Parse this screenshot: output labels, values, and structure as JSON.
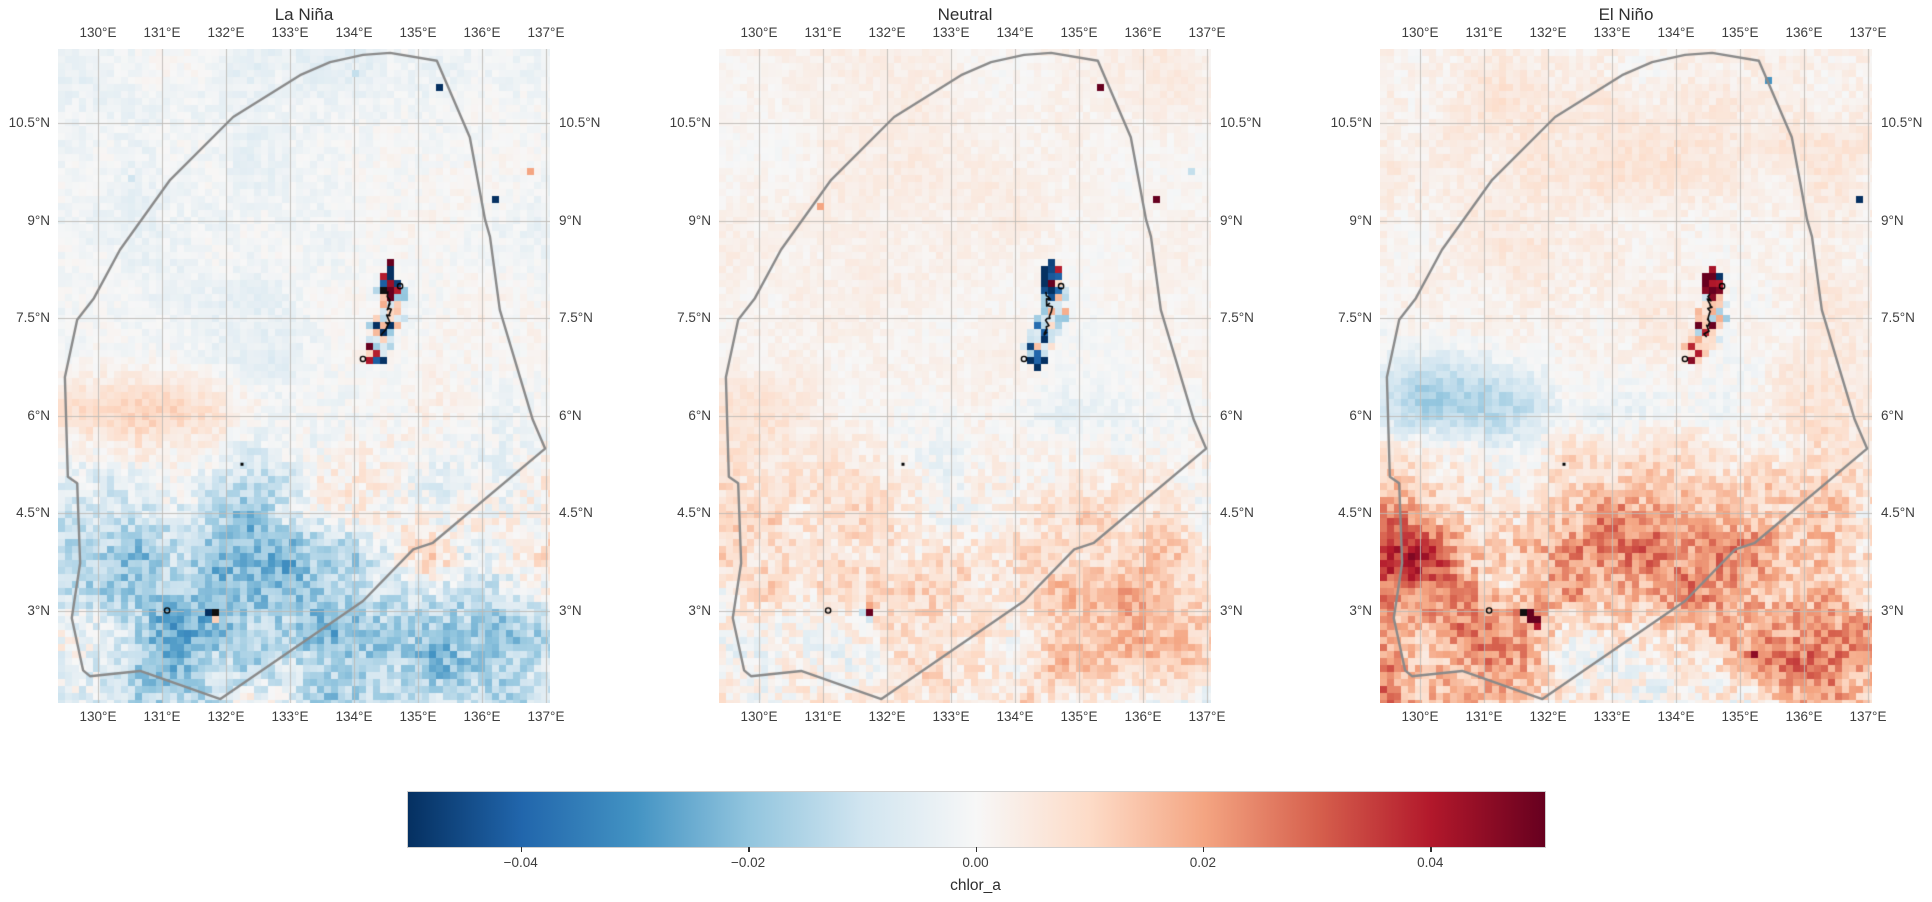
{
  "colorbar": {
    "label": "chlor_a",
    "tick_labels": [
      "−0.04",
      "−0.02",
      "0.00",
      "0.02",
      "0.04"
    ],
    "tick_values": [
      -0.04,
      -0.02,
      0.0,
      0.02,
      0.04
    ],
    "vmin": -0.05,
    "vmax": 0.05,
    "stops": [
      "#053061",
      "#2166ac",
      "#4393c3",
      "#92c5de",
      "#d1e5f0",
      "#f7f7f7",
      "#fddbc7",
      "#f4a582",
      "#d6604d",
      "#b2182b",
      "#67001f"
    ]
  },
  "chart_data": {
    "type": "heatmap",
    "variable": "chlor_a",
    "colormap": "RdBu_r",
    "vmin": -0.05,
    "vmax": 0.05,
    "colorbar_tick_values": [
      -0.04,
      -0.02,
      0.0,
      0.02,
      0.04
    ],
    "lon_range": [
      129.375,
      137.0625
    ],
    "lat_range": [
      1.58,
      11.64
    ],
    "lon_tick_values": [
      130,
      131,
      132,
      133,
      134,
      135,
      136,
      137
    ],
    "lat_tick_values": [
      10.5,
      9,
      7.5,
      6,
      4.5,
      3
    ],
    "lon_tick_labels": [
      "130°E",
      "131°E",
      "132°E",
      "133°E",
      "134°E",
      "135°E",
      "136°E",
      "137°E"
    ],
    "lat_tick_labels": [
      "10.5°N",
      "9°N",
      "7.5°N",
      "6°N",
      "4.5°N",
      "3°N"
    ],
    "grid": true,
    "boundary_polygon_norm": [
      [
        0.553,
        0.02
      ],
      [
        0.62,
        0.009
      ],
      [
        0.675,
        0.006
      ],
      [
        0.77,
        0.018
      ],
      [
        0.837,
        0.135
      ],
      [
        0.868,
        0.261
      ],
      [
        0.878,
        0.287
      ],
      [
        0.898,
        0.399
      ],
      [
        0.965,
        0.567
      ],
      [
        0.99,
        0.611
      ],
      [
        0.762,
        0.755
      ],
      [
        0.722,
        0.765
      ],
      [
        0.62,
        0.844
      ],
      [
        0.33,
        0.994
      ],
      [
        0.167,
        0.951
      ],
      [
        0.065,
        0.959
      ],
      [
        0.051,
        0.95
      ],
      [
        0.028,
        0.87
      ],
      [
        0.045,
        0.786
      ],
      [
        0.039,
        0.664
      ],
      [
        0.02,
        0.654
      ],
      [
        0.014,
        0.502
      ],
      [
        0.039,
        0.414
      ],
      [
        0.073,
        0.381
      ],
      [
        0.126,
        0.307
      ],
      [
        0.228,
        0.2
      ],
      [
        0.356,
        0.104
      ],
      [
        0.492,
        0.04
      ]
    ],
    "island_arc": [
      [
        134.3,
        6.82
      ],
      [
        134.38,
        7.05
      ],
      [
        134.48,
        7.3
      ],
      [
        134.55,
        7.55
      ],
      [
        134.52,
        7.8
      ],
      [
        134.52,
        8.02
      ],
      [
        134.6,
        8.22
      ]
    ],
    "island_ring_dots": [
      [
        134.14,
        6.87
      ],
      [
        134.72,
        7.99
      ]
    ],
    "panels": [
      {
        "title": "La Niña",
        "seed": 11,
        "base": -0.002,
        "noise_scale": 1.0,
        "island_bias_red": 0.45,
        "island_black_prob": 0.16,
        "blobs": [
          {
            "x": 131.5,
            "y": 3.8,
            "sx": 1.7,
            "sy": 1.0,
            "a": -0.02
          },
          {
            "x": 134.8,
            "y": 2.2,
            "sx": 2.6,
            "sy": 1.3,
            "a": -0.013
          },
          {
            "x": 130.0,
            "y": 2.3,
            "sx": 1.4,
            "sy": 1.2,
            "a": -0.01
          },
          {
            "x": 130.4,
            "y": 6.05,
            "sx": 1.6,
            "sy": 0.6,
            "a": 0.011
          },
          {
            "x": 132.2,
            "y": 6.1,
            "sx": 1.0,
            "sy": 0.5,
            "a": 0.005
          },
          {
            "x": 135.3,
            "y": 7.2,
            "sx": 1.4,
            "sy": 0.9,
            "a": 0.004
          },
          {
            "x": 130.5,
            "y": 9.8,
            "sx": 1.5,
            "sy": 1.2,
            "a": -0.002
          }
        ],
        "outliers": [
          {
            "lon": 135.31,
            "lat": 11.05,
            "v": -0.05
          },
          {
            "lon": 136.23,
            "lat": 9.35,
            "v": -0.05
          },
          {
            "lon": 136.73,
            "lat": 9.78,
            "v": 0.02
          },
          {
            "lon": 134.02,
            "lat": 11.24,
            "v": -0.012
          },
          {
            "lon": 130.55,
            "lat": 9.6,
            "v": -0.01
          }
        ],
        "south_cluster": [
          {
            "lon": 131.72,
            "lat": 3.02,
            "v": -0.001
          },
          {
            "lon": 131.8,
            "lat": 3.02,
            "v": "black"
          },
          {
            "lon": 131.72,
            "lat": 2.92,
            "v": -0.05
          },
          {
            "lon": 131.82,
            "lat": 2.9,
            "v": 0.012
          },
          {
            "lon": 131.42,
            "lat": 3.02,
            "v": -0.025
          }
        ],
        "ring_dots": [
          [
            131.08,
            3.0
          ]
        ],
        "point_dots": [
          [
            132.25,
            5.25
          ]
        ]
      },
      {
        "title": "Neutral",
        "seed": 22,
        "base": 0.0025,
        "noise_scale": 0.8,
        "island_bias_red": 0.18,
        "island_black_prob": 0.2,
        "blobs": [
          {
            "x": 131.4,
            "y": 3.7,
            "sx": 1.9,
            "sy": 1.1,
            "a": 0.011
          },
          {
            "x": 134.6,
            "y": 2.6,
            "sx": 2.6,
            "sy": 1.3,
            "a": 0.008
          },
          {
            "x": 130.2,
            "y": 6.1,
            "sx": 1.4,
            "sy": 0.6,
            "a": 0.004
          },
          {
            "x": 134.3,
            "y": 5.9,
            "sx": 1.3,
            "sy": 0.7,
            "a": -0.005
          },
          {
            "x": 136.0,
            "y": 8.0,
            "sx": 1.5,
            "sy": 1.5,
            "a": -0.002
          }
        ],
        "outliers": [
          {
            "lon": 135.33,
            "lat": 11.05,
            "v": 0.05
          },
          {
            "lon": 136.25,
            "lat": 9.35,
            "v": 0.05
          },
          {
            "lon": 136.75,
            "lat": 9.8,
            "v": -0.012
          },
          {
            "lon": 130.95,
            "lat": 9.2,
            "v": 0.02
          }
        ],
        "south_cluster": [
          {
            "lon": 131.7,
            "lat": 3.05,
            "v": 0.02
          },
          {
            "lon": 131.63,
            "lat": 3.0,
            "v": -0.012
          },
          {
            "lon": 131.77,
            "lat": 3.02,
            "v": "black"
          },
          {
            "lon": 131.7,
            "lat": 2.92,
            "v": 0.05
          },
          {
            "lon": 131.78,
            "lat": 2.9,
            "v": -0.05
          },
          {
            "lon": 131.7,
            "lat": 2.82,
            "v": -0.01
          }
        ],
        "ring_dots": [
          [
            131.08,
            3.0
          ]
        ],
        "point_dots": [
          [
            132.25,
            5.25
          ]
        ]
      },
      {
        "title": "El Niño",
        "seed": 33,
        "base": 0.003,
        "noise_scale": 1.1,
        "island_bias_red": 0.85,
        "island_black_prob": 0.13,
        "blobs": [
          {
            "x": 130.2,
            "y": 6.25,
            "sx": 1.7,
            "sy": 0.7,
            "a": -0.017
          },
          {
            "x": 132.8,
            "y": 6.0,
            "sx": 1.4,
            "sy": 0.55,
            "a": -0.007
          },
          {
            "x": 130.0,
            "y": 2.6,
            "sx": 1.9,
            "sy": 1.5,
            "a": 0.022
          },
          {
            "x": 133.6,
            "y": 3.2,
            "sx": 2.3,
            "sy": 1.1,
            "a": 0.014
          },
          {
            "x": 136.2,
            "y": 2.4,
            "sx": 1.6,
            "sy": 1.1,
            "a": 0.013
          },
          {
            "x": 129.5,
            "y": 4.4,
            "sx": 0.9,
            "sy": 1.3,
            "a": 0.012
          },
          {
            "x": 133.8,
            "y": 4.15,
            "sx": 3.4,
            "sy": 0.55,
            "a": 0.009
          },
          {
            "x": 135.6,
            "y": 4.6,
            "sx": 1.4,
            "sy": 0.9,
            "a": 0.006
          },
          {
            "x": 133.0,
            "y": 10.0,
            "sx": 3.0,
            "sy": 1.8,
            "a": 0.002
          }
        ],
        "outliers": [
          {
            "lon": 135.44,
            "lat": 11.11,
            "v": -0.03
          },
          {
            "lon": 136.84,
            "lat": 9.33,
            "v": -0.05
          },
          {
            "lon": 135.2,
            "lat": 2.3,
            "v": 0.045
          },
          {
            "lon": 136.4,
            "lat": 2.6,
            "v": 0.03
          }
        ],
        "south_cluster": [
          {
            "lon": 131.7,
            "lat": 2.95,
            "v": 0.05
          },
          {
            "lon": 131.72,
            "lat": 2.84,
            "v": 0.05
          },
          {
            "lon": 131.8,
            "lat": 2.9,
            "v": 0.05
          },
          {
            "lon": 131.63,
            "lat": 2.97,
            "v": "black"
          },
          {
            "lon": 131.56,
            "lat": 3.02,
            "v": 0.028
          },
          {
            "lon": 131.8,
            "lat": 2.72,
            "v": 0.04
          }
        ],
        "ring_dots": [
          [
            131.08,
            3.0
          ]
        ],
        "point_dots": [
          [
            132.25,
            5.25
          ]
        ]
      }
    ]
  }
}
